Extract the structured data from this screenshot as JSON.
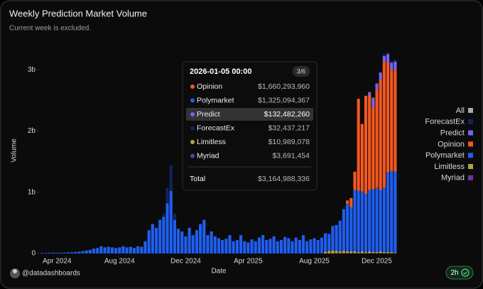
{
  "chart_data": {
    "type": "bar",
    "stacked": true,
    "title": "Weekly Prediction Market Volume",
    "subtitle": "Current week is excluded.",
    "y_label": "Volume",
    "x_label": "Date",
    "legend_all": "All",
    "legend_position": "right",
    "categories": [
      null,
      null,
      null,
      null,
      "Apr 2024",
      null,
      null,
      null,
      null,
      null,
      null,
      null,
      null,
      null,
      null,
      null,
      null,
      null,
      null,
      null,
      null,
      "Aug 2024",
      null,
      null,
      null,
      null,
      null,
      null,
      null,
      null,
      null,
      null,
      null,
      null,
      null,
      null,
      null,
      null,
      null,
      "Dec 2024",
      null,
      null,
      null,
      null,
      null,
      null,
      null,
      null,
      null,
      null,
      null,
      null,
      null,
      null,
      null,
      null,
      "Apr 2025",
      null,
      null,
      null,
      null,
      null,
      null,
      null,
      null,
      null,
      null,
      null,
      null,
      null,
      null,
      null,
      null,
      null,
      "Aug 2025",
      null,
      null,
      null,
      null,
      null,
      null,
      null,
      null,
      null,
      null,
      null,
      null,
      null,
      null,
      null,
      null,
      "Dec 2025",
      null,
      null,
      null,
      null,
      null
    ],
    "ylim": [
      0,
      3.35
    ],
    "yticks": [
      {
        "value": 0,
        "label": "0"
      },
      {
        "value": 1,
        "label": "1b"
      },
      {
        "value": 2,
        "label": "2b"
      },
      {
        "value": 3,
        "label": "3b"
      }
    ],
    "series": [
      {
        "name": "ForecastEx",
        "color": "#13235e",
        "values": [
          0,
          0,
          0,
          0,
          0,
          0,
          0,
          0,
          0,
          0,
          0,
          0,
          0,
          0,
          0,
          0,
          0,
          0,
          0,
          0,
          0,
          0,
          0,
          0,
          0,
          0,
          0,
          0,
          0,
          0,
          0,
          0,
          0,
          0.05,
          0.25,
          0.42,
          0.1,
          0.01,
          0,
          0,
          0,
          0,
          0,
          0,
          0,
          0,
          0,
          0,
          0,
          0,
          0,
          0,
          0,
          0,
          0,
          0,
          0,
          0,
          0,
          0,
          0,
          0,
          0,
          0,
          0,
          0,
          0,
          0,
          0,
          0,
          0,
          0,
          0,
          0,
          0,
          0,
          0,
          0,
          0,
          0,
          0,
          0,
          0,
          0,
          0,
          0,
          0,
          0,
          0,
          0,
          0,
          0,
          0,
          0.03,
          0.03,
          0.03,
          0.032437217
        ]
      },
      {
        "name": "Predict",
        "color": "#7b61f5",
        "values": [
          0,
          0,
          0,
          0,
          0,
          0,
          0,
          0,
          0,
          0,
          0,
          0,
          0,
          0,
          0,
          0,
          0,
          0,
          0,
          0,
          0,
          0,
          0,
          0,
          0,
          0,
          0,
          0,
          0,
          0,
          0,
          0,
          0,
          0,
          0,
          0,
          0,
          0,
          0,
          0,
          0,
          0,
          0,
          0,
          0,
          0,
          0,
          0,
          0,
          0,
          0,
          0,
          0,
          0,
          0,
          0,
          0,
          0,
          0,
          0,
          0,
          0,
          0,
          0,
          0,
          0,
          0,
          0,
          0,
          0,
          0,
          0,
          0,
          0,
          0,
          0,
          0,
          0,
          0,
          0,
          0,
          0,
          0,
          0,
          0,
          0,
          0,
          0,
          0,
          0.05,
          0.15,
          0.1,
          0.12,
          0.1,
          0.13,
          0.12,
          0.13248226
        ]
      },
      {
        "name": "Opinion",
        "color": "#f4581f",
        "values": [
          0,
          0,
          0,
          0,
          0,
          0,
          0,
          0,
          0,
          0,
          0,
          0,
          0,
          0,
          0,
          0,
          0,
          0,
          0,
          0,
          0,
          0,
          0,
          0,
          0,
          0,
          0,
          0,
          0,
          0,
          0,
          0,
          0,
          0,
          0,
          0,
          0,
          0,
          0,
          0,
          0,
          0,
          0,
          0,
          0,
          0,
          0,
          0,
          0,
          0,
          0,
          0,
          0,
          0,
          0,
          0,
          0,
          0,
          0,
          0,
          0,
          0,
          0,
          0,
          0,
          0,
          0,
          0,
          0,
          0,
          0,
          0,
          0,
          0,
          0,
          0,
          0,
          0,
          0,
          0,
          0,
          0,
          0,
          0.05,
          0.15,
          0.3,
          1.5,
          1.1,
          1.6,
          1.55,
          1.35,
          1.6,
          1.8,
          2.05,
          1.8,
          1.65,
          1.66029396
        ]
      },
      {
        "name": "Polymarket",
        "color": "#1f5ef0",
        "values": [
          0.01,
          0.01,
          0.012,
          0.015,
          0.012,
          0.013,
          0.015,
          0.02,
          0.02,
          0.025,
          0.03,
          0.04,
          0.05,
          0.06,
          0.08,
          0.09,
          0.12,
          0.1,
          0.11,
          0.1,
          0.09,
          0.1,
          0.12,
          0.1,
          0.11,
          0.09,
          0.12,
          0.11,
          0.2,
          0.38,
          0.48,
          0.42,
          0.55,
          0.6,
          0.82,
          1.02,
          0.55,
          0.4,
          0.36,
          0.28,
          0.42,
          0.3,
          0.38,
          0.48,
          0.55,
          0.3,
          0.36,
          0.28,
          0.25,
          0.22,
          0.24,
          0.3,
          0.2,
          0.22,
          0.3,
          0.2,
          0.18,
          0.23,
          0.2,
          0.26,
          0.3,
          0.22,
          0.24,
          0.28,
          0.2,
          0.22,
          0.27,
          0.25,
          0.2,
          0.26,
          0.22,
          0.3,
          0.2,
          0.23,
          0.25,
          0.22,
          0.26,
          0.3,
          0.28,
          0.4,
          0.42,
          0.5,
          0.68,
          0.78,
          0.72,
          1.0,
          1.0,
          0.98,
          0.95,
          1.0,
          1.02,
          1.05,
          1.0,
          1.05,
          1.3,
          1.32,
          1.325094367
        ]
      },
      {
        "name": "Limitless",
        "color": "#b5a33c",
        "values": [
          0,
          0,
          0,
          0,
          0,
          0,
          0,
          0,
          0,
          0,
          0,
          0,
          0,
          0,
          0,
          0,
          0,
          0,
          0,
          0,
          0,
          0,
          0,
          0,
          0,
          0,
          0,
          0,
          0,
          0,
          0,
          0,
          0,
          0,
          0,
          0,
          0,
          0,
          0,
          0,
          0,
          0,
          0,
          0,
          0,
          0,
          0,
          0,
          0,
          0,
          0,
          0,
          0,
          0,
          0,
          0,
          0,
          0,
          0,
          0,
          0,
          0,
          0,
          0,
          0,
          0,
          0,
          0,
          0,
          0,
          0,
          0,
          0,
          0,
          0,
          0,
          0,
          0.03,
          0.04,
          0.05,
          0.04,
          0.03,
          0.04,
          0.03,
          0.03,
          0.03,
          0.02,
          0.03,
          0.02,
          0.03,
          0.02,
          0.02,
          0.03,
          0.02,
          0.02,
          0.02,
          0.010989078
        ]
      },
      {
        "name": "Myriad",
        "color": "#6b35a6",
        "values": [
          0,
          0,
          0,
          0,
          0,
          0,
          0,
          0,
          0,
          0,
          0,
          0,
          0,
          0,
          0,
          0,
          0,
          0,
          0,
          0,
          0,
          0,
          0,
          0,
          0,
          0,
          0,
          0,
          0,
          0,
          0,
          0,
          0,
          0,
          0,
          0,
          0,
          0,
          0,
          0,
          0,
          0,
          0,
          0,
          0,
          0,
          0,
          0,
          0,
          0,
          0,
          0,
          0,
          0,
          0,
          0,
          0,
          0,
          0,
          0,
          0,
          0,
          0,
          0,
          0,
          0,
          0,
          0,
          0,
          0,
          0,
          0,
          0,
          0,
          0,
          0,
          0,
          0,
          0,
          0,
          0.005,
          0.005,
          0.005,
          0.005,
          0.005,
          0.005,
          0.005,
          0.005,
          0.005,
          0.005,
          0.005,
          0.005,
          0.005,
          0.005,
          0.005,
          0.005,
          0.003691454
        ]
      }
    ],
    "tooltip": {
      "date": "2026-01-05 00:00",
      "page": "3/6",
      "highlight": "Predict",
      "items": [
        {
          "name": "Opinion",
          "value": "$1,660,293,960"
        },
        {
          "name": "Polymarket",
          "value": "$1,325,094,367"
        },
        {
          "name": "Predict",
          "value": "$132,482,260"
        },
        {
          "name": "ForecastEx",
          "value": "$32,437,217"
        },
        {
          "name": "Limitless",
          "value": "$10,989,078"
        },
        {
          "name": "Myriad",
          "value": "$3,691,454"
        }
      ],
      "total_name": "Total",
      "total_value": "$3,164,988,336"
    }
  },
  "footer": {
    "handle": "@datadashboards",
    "badge": "2h"
  }
}
